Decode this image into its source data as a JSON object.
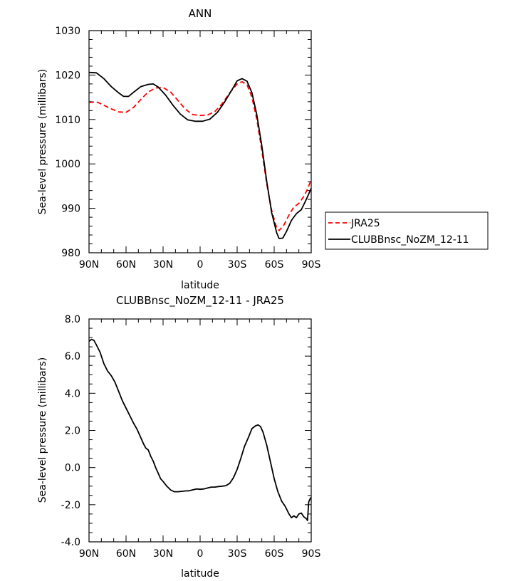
{
  "chart_data": [
    {
      "type": "line",
      "title": "ANN",
      "xlabel": "latitude",
      "ylabel": "Sea-level pressure (millibars)",
      "xlim": [
        90,
        -90
      ],
      "ylim": [
        980,
        1030
      ],
      "x_tick_values": [
        90,
        60,
        30,
        0,
        -30,
        -60,
        -90
      ],
      "x_tick_labels": [
        "90N",
        "60N",
        "30N",
        "0",
        "30S",
        "60S",
        "90S"
      ],
      "y_tick_values": [
        980,
        990,
        1000,
        1010,
        1020,
        1030
      ],
      "y_tick_labels": [
        "980",
        "990",
        "1000",
        "1010",
        "1020",
        "1030"
      ],
      "legend_position": "right",
      "series": [
        {
          "name": "JRA25",
          "color": "#ff0000",
          "dash": "dashed",
          "points": [
            [
              90,
              1013.8
            ],
            [
              84,
              1014
            ],
            [
              78,
              1013.2
            ],
            [
              72,
              1012.4
            ],
            [
              66,
              1011.7
            ],
            [
              60,
              1011.6
            ],
            [
              54,
              1012.7
            ],
            [
              48,
              1014.5
            ],
            [
              42,
              1016.2
            ],
            [
              36,
              1017.1
            ],
            [
              30,
              1017.2
            ],
            [
              24,
              1016.2
            ],
            [
              18,
              1014.3
            ],
            [
              12,
              1012.3
            ],
            [
              6,
              1011.1
            ],
            [
              0,
              1010.9
            ],
            [
              -6,
              1011
            ],
            [
              -12,
              1011.8
            ],
            [
              -18,
              1013.6
            ],
            [
              -24,
              1016
            ],
            [
              -30,
              1018
            ],
            [
              -34,
              1018.5
            ],
            [
              -38,
              1017.8
            ],
            [
              -42,
              1015
            ],
            [
              -46,
              1010
            ],
            [
              -50,
              1003
            ],
            [
              -54,
              995.5
            ],
            [
              -58,
              989.5
            ],
            [
              -62,
              985.6
            ],
            [
              -64,
              985
            ],
            [
              -68,
              986.3
            ],
            [
              -72,
              988.5
            ],
            [
              -76,
              990.3
            ],
            [
              -80,
              991.1
            ],
            [
              -84,
              992.7
            ],
            [
              -87,
              994.3
            ],
            [
              -90,
              996.5
            ]
          ]
        },
        {
          "name": "CLUBBnsc_NoZM_12-11",
          "color": "#000000",
          "dash": "solid",
          "points": [
            [
              90,
              1020.6
            ],
            [
              84,
              1020.5
            ],
            [
              78,
              1019.2
            ],
            [
              72,
              1017.4
            ],
            [
              66,
              1016
            ],
            [
              62,
              1015.2
            ],
            [
              58,
              1015.2
            ],
            [
              54,
              1016.1
            ],
            [
              48,
              1017.4
            ],
            [
              42,
              1017.9
            ],
            [
              38,
              1018
            ],
            [
              34,
              1017.3
            ],
            [
              28,
              1015.5
            ],
            [
              22,
              1013.2
            ],
            [
              16,
              1011.2
            ],
            [
              10,
              1009.9
            ],
            [
              4,
              1009.6
            ],
            [
              -2,
              1009.6
            ],
            [
              -8,
              1010.1
            ],
            [
              -14,
              1011.6
            ],
            [
              -20,
              1014
            ],
            [
              -26,
              1016.8
            ],
            [
              -30,
              1018.7
            ],
            [
              -34,
              1019.2
            ],
            [
              -38,
              1018.6
            ],
            [
              -42,
              1016
            ],
            [
              -46,
              1011
            ],
            [
              -50,
              1004
            ],
            [
              -54,
              996
            ],
            [
              -58,
              989
            ],
            [
              -62,
              984.5
            ],
            [
              -64,
              983.2
            ],
            [
              -67,
              983.3
            ],
            [
              -70,
              984.8
            ],
            [
              -74,
              987.3
            ],
            [
              -78,
              988.8
            ],
            [
              -82,
              989.7
            ],
            [
              -86,
              992
            ],
            [
              -90,
              994.5
            ]
          ]
        }
      ]
    },
    {
      "type": "line",
      "title": "CLUBBnsc_NoZM_12-11 - JRA25",
      "xlabel": "latitude",
      "ylabel": "Sea-level pressure (millibars)",
      "xlim": [
        90,
        -90
      ],
      "ylim": [
        -4,
        8
      ],
      "x_tick_values": [
        90,
        60,
        30,
        0,
        -30,
        -60,
        -90
      ],
      "x_tick_labels": [
        "90N",
        "60N",
        "30N",
        "0",
        "30S",
        "60S",
        "90S"
      ],
      "y_tick_values": [
        -4,
        -2,
        0,
        2,
        4,
        6,
        8
      ],
      "y_tick_labels": [
        "-4.0",
        "-2.0",
        "0.0",
        "2.0",
        "4.0",
        "6.0",
        "8.0"
      ],
      "series": [
        {
          "color": "#000000",
          "dash": "solid",
          "points": [
            [
              90,
              6.8
            ],
            [
              88,
              6.9
            ],
            [
              86,
              6.85
            ],
            [
              84,
              6.6
            ],
            [
              81,
              6.2
            ],
            [
              78,
              5.6
            ],
            [
              75,
              5.2
            ],
            [
              72,
              4.95
            ],
            [
              69,
              4.6
            ],
            [
              66,
              4.1
            ],
            [
              63,
              3.6
            ],
            [
              60,
              3.2
            ],
            [
              57,
              2.8
            ],
            [
              54,
              2.4
            ],
            [
              51,
              2.05
            ],
            [
              48,
              1.6
            ],
            [
              46,
              1.3
            ],
            [
              44,
              1.05
            ],
            [
              42,
              0.95
            ],
            [
              40,
              0.6
            ],
            [
              38,
              0.35
            ],
            [
              36,
              0
            ],
            [
              34,
              -0.3
            ],
            [
              32,
              -0.6
            ],
            [
              30,
              -0.75
            ],
            [
              27,
              -1
            ],
            [
              24,
              -1.2
            ],
            [
              21,
              -1.3
            ],
            [
              18,
              -1.3
            ],
            [
              15,
              -1.28
            ],
            [
              12,
              -1.26
            ],
            [
              9,
              -1.25
            ],
            [
              6,
              -1.2
            ],
            [
              3,
              -1.15
            ],
            [
              0,
              -1.17
            ],
            [
              -3,
              -1.15
            ],
            [
              -6,
              -1.1
            ],
            [
              -9,
              -1.05
            ],
            [
              -12,
              -1.05
            ],
            [
              -15,
              -1.02
            ],
            [
              -18,
              -1
            ],
            [
              -21,
              -0.97
            ],
            [
              -24,
              -0.85
            ],
            [
              -27,
              -0.55
            ],
            [
              -30,
              -0.1
            ],
            [
              -33,
              0.5
            ],
            [
              -36,
              1.15
            ],
            [
              -39,
              1.6
            ],
            [
              -42,
              2.1
            ],
            [
              -45,
              2.25
            ],
            [
              -47,
              2.3
            ],
            [
              -49,
              2.2
            ],
            [
              -51,
              1.9
            ],
            [
              -54,
              1.2
            ],
            [
              -57,
              0.3
            ],
            [
              -60,
              -0.6
            ],
            [
              -63,
              -1.3
            ],
            [
              -66,
              -1.8
            ],
            [
              -69,
              -2.1
            ],
            [
              -72,
              -2.5
            ],
            [
              -74,
              -2.7
            ],
            [
              -76,
              -2.6
            ],
            [
              -78,
              -2.7
            ],
            [
              -80,
              -2.5
            ],
            [
              -82,
              -2.45
            ],
            [
              -84,
              -2.65
            ],
            [
              -86,
              -2.75
            ],
            [
              -87,
              -2.85
            ],
            [
              -88,
              -1.85
            ],
            [
              -89,
              -1.7
            ],
            [
              -90,
              -1.6
            ]
          ]
        }
      ]
    }
  ]
}
